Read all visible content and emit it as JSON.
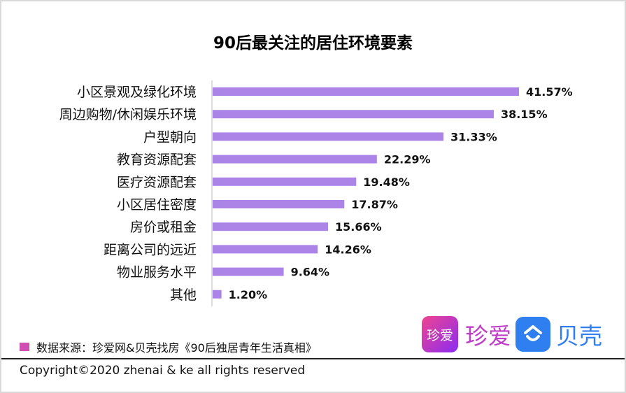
{
  "chart_data": {
    "type": "bar",
    "orientation": "horizontal",
    "title": "90后最关注的居住环境要素",
    "categories": [
      "小区景观及绿化环境",
      "周边购物/休闲娱乐环境",
      "户型朝向",
      "教育资源配套",
      "医疗资源配套",
      "小区居住密度",
      "房价或租金",
      "距离公司的远近",
      "物业服务水平",
      "其他"
    ],
    "values": [
      41.57,
      38.15,
      31.33,
      22.29,
      19.48,
      17.87,
      15.66,
      14.26,
      9.64,
      1.2
    ],
    "value_labels": [
      "41.57%",
      "38.15%",
      "31.33%",
      "22.29%",
      "19.48%",
      "17.87%",
      "15.66%",
      "14.26%",
      "9.64%",
      "1.20%"
    ],
    "unit": "%",
    "bar_color": "#ac84e8",
    "grid": false
  },
  "legend": {
    "label": "数据来源：珍爱网&贝壳找房《90后独居青年生活真相》",
    "color": "#d14fb3"
  },
  "logos": {
    "zhenai_icon": "珍爱",
    "zhenai_text": "珍爱",
    "beike_text": "贝壳"
  },
  "footer": {
    "copyright": "Copyright©2020 zhenai & ke all rights reserved"
  }
}
